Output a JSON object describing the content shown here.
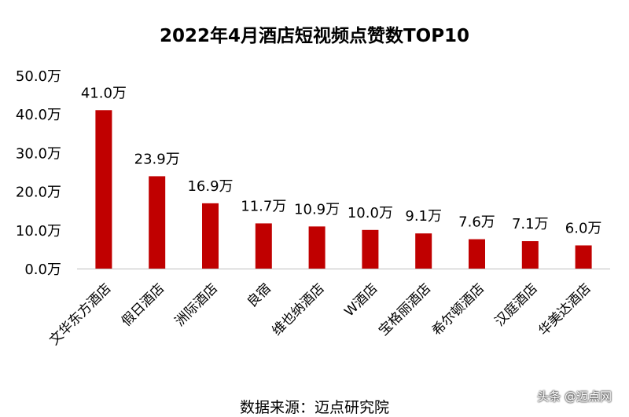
{
  "title": "2022年4月酒店短视频点赞数TOP10",
  "source": "数据来源：迈点研究院",
  "watermark": "头条 @迈点网",
  "colors": {
    "bar": "#C00000",
    "axis": "#BFBFBF",
    "text": "#000000"
  },
  "chart_data": {
    "type": "bar",
    "title": "2022年4月酒店短视频点赞数TOP10",
    "xlabel": "",
    "ylabel": "",
    "unit": "万",
    "ylim": [
      0,
      50
    ],
    "yticks": [
      0,
      10,
      20,
      30,
      40,
      50
    ],
    "ytick_labels": [
      "0.0万",
      "10.0万",
      "20.0万",
      "30.0万",
      "40.0万",
      "50.0万"
    ],
    "grid": false,
    "legend": "none",
    "categories": [
      "文华东方酒店",
      "假日酒店",
      "洲际酒店",
      "良宿",
      "维也纳酒店",
      "W酒店",
      "宝格丽酒店",
      "希尔顿酒店",
      "汉庭酒店",
      "华美达酒店"
    ],
    "values": [
      41.0,
      23.9,
      16.9,
      11.7,
      10.9,
      10.0,
      9.1,
      7.6,
      7.1,
      6.0
    ],
    "value_labels": [
      "41.0万",
      "23.9万",
      "16.9万",
      "11.7万",
      "10.9万",
      "10.0万",
      "9.1万",
      "7.6万",
      "7.1万",
      "6.0万"
    ]
  }
}
